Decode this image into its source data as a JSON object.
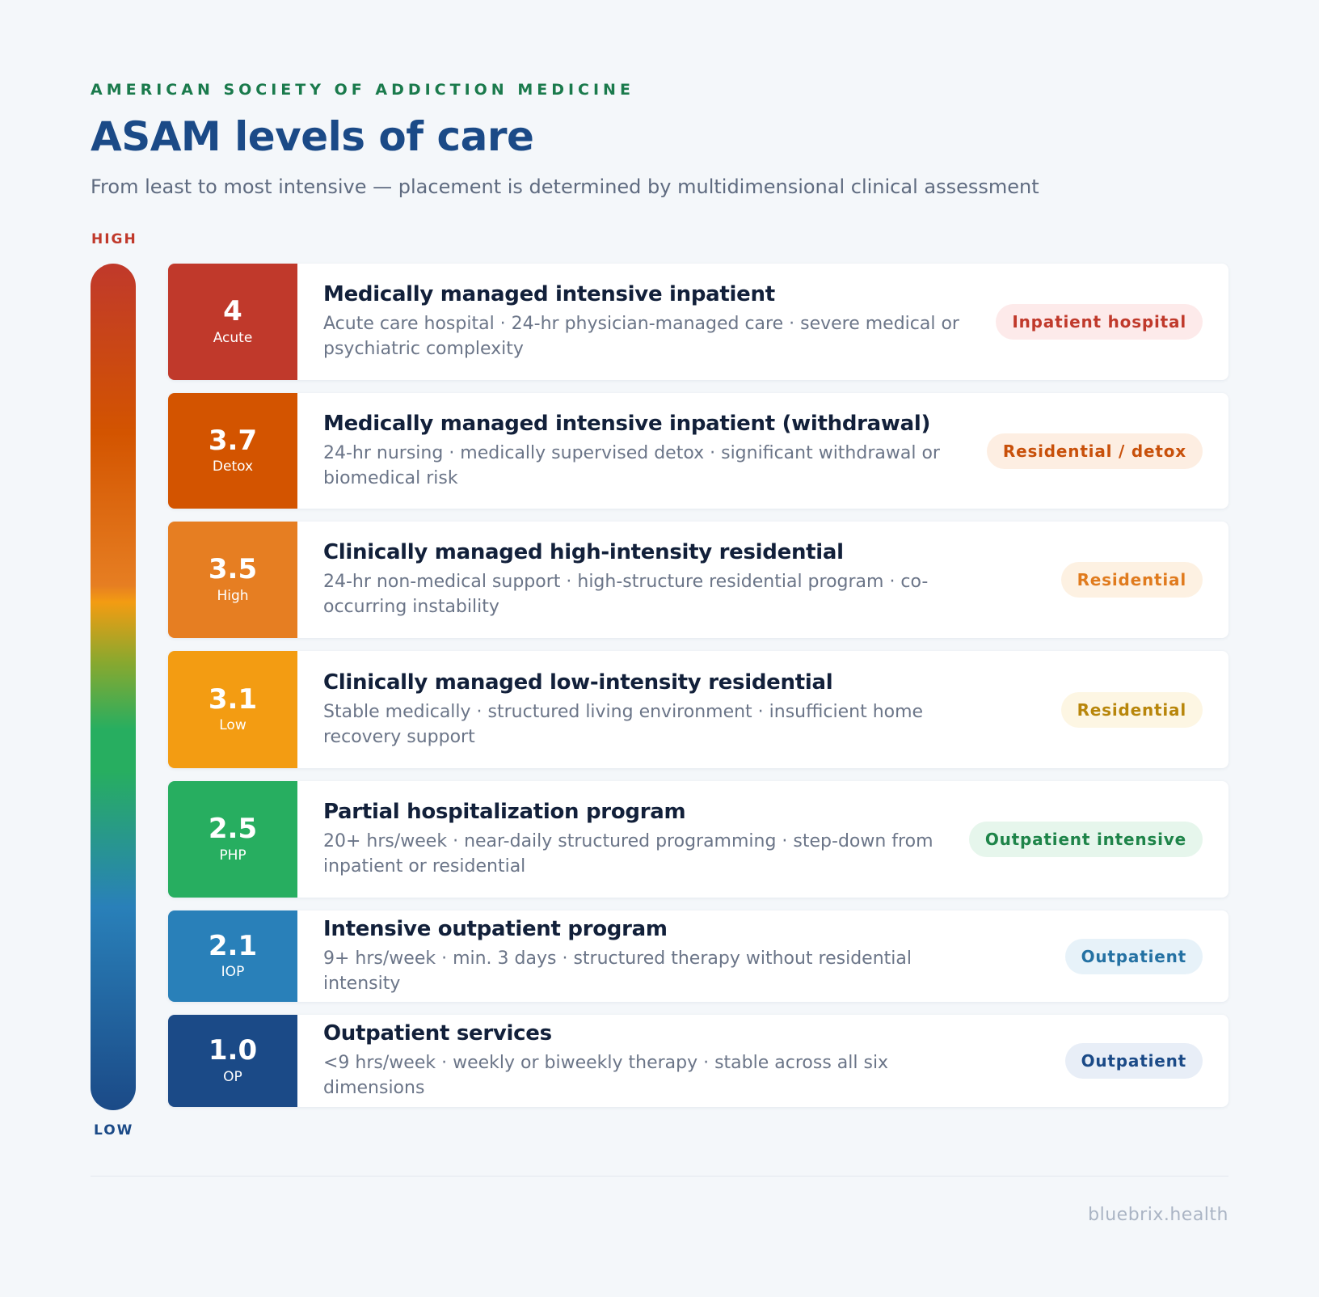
{
  "header": {
    "eyebrow": "AMERICAN SOCIETY OF ADDICTION MEDICINE",
    "title": "ASAM levels of care",
    "subtitle": "From least to most intensive — placement is determined by multidimensional clinical assessment"
  },
  "scale": {
    "high_label": "HIGH",
    "low_label": "LOW"
  },
  "levels": [
    {
      "code": "4",
      "tag": "Acute",
      "title": "Medically managed intensive inpatient",
      "description": "Acute care hospital · 24-hr physician-managed care · severe medical or psychiatric complexity",
      "badge": "Inpatient hospital",
      "tile_color": "#c0392b",
      "badge_bg": "#fdeaea",
      "badge_color": "#c0392b"
    },
    {
      "code": "3.7",
      "tag": "Detox",
      "title": "Medically managed intensive inpatient (withdrawal)",
      "description": "24-hr nursing · medically supervised detox · significant withdrawal or biomedical risk",
      "badge": "Residential / detox",
      "tile_color": "#d35400",
      "badge_bg": "#fdeee2",
      "badge_color": "#c8500a"
    },
    {
      "code": "3.5",
      "tag": "High",
      "title": "Clinically managed high-intensity residential",
      "description": "24-hr non-medical support · high-structure residential program · co-occurring instability",
      "badge": "Residential",
      "tile_color": "#e67e22",
      "badge_bg": "#fdf1e2",
      "badge_color": "#e07b1e"
    },
    {
      "code": "3.1",
      "tag": "Low",
      "title": "Clinically managed low-intensity residential",
      "description": "Stable medically · structured living environment · insufficient home recovery support",
      "badge": "Residential",
      "tile_color": "#f39c12",
      "badge_bg": "#fdf6e3",
      "badge_color": "#b8860b"
    },
    {
      "code": "2.5",
      "tag": "PHP",
      "title": "Partial hospitalization program",
      "description": "20+ hrs/week · near-daily structured programming · step-down from inpatient or residential",
      "badge": "Outpatient intensive",
      "tile_color": "#27ae60",
      "badge_bg": "#e6f6ec",
      "badge_color": "#1e8449"
    },
    {
      "code": "2.1",
      "tag": "IOP",
      "title": "Intensive outpatient program",
      "description": "9+ hrs/week · min. 3 days · structured therapy without residential intensity",
      "badge": "Outpatient",
      "tile_color": "#2980b9",
      "badge_bg": "#e7f2f9",
      "badge_color": "#2471a3"
    },
    {
      "code": "1.0",
      "tag": "OP",
      "title": "Outpatient services",
      "description": "<9 hrs/week · weekly or biweekly therapy · stable across all six dimensions",
      "badge": "Outpatient",
      "tile_color": "#1b4a87",
      "badge_bg": "#e8eef7",
      "badge_color": "#1b4a87"
    }
  ],
  "footer": {
    "brand": "bluebrix.health"
  }
}
